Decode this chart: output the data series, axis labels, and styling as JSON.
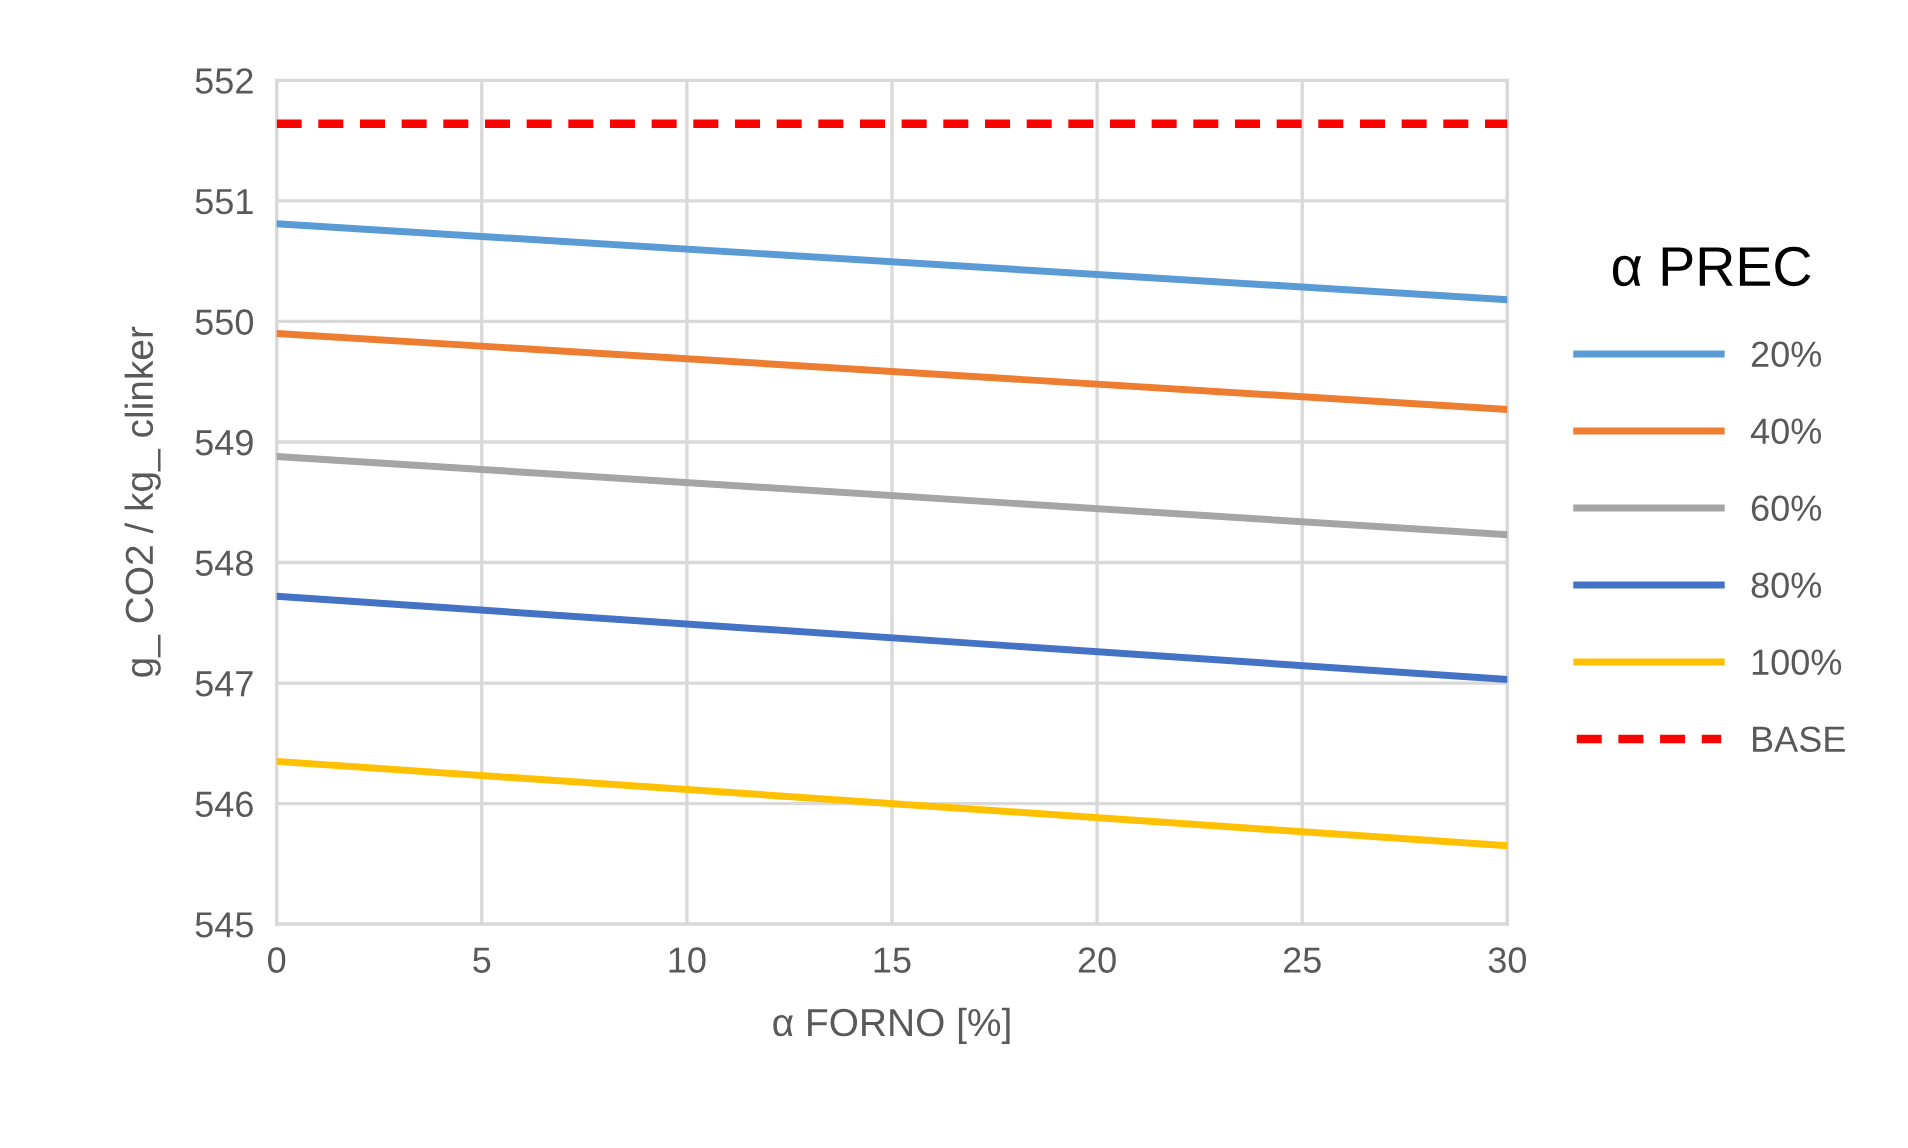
{
  "chart_data": {
    "type": "line",
    "xlabel": "α FORNO [%]",
    "ylabel": "g_ CO2 / kg_ clinker",
    "legend_title": "α PREC",
    "x": [
      0,
      30
    ],
    "series": [
      {
        "name": "20%",
        "color": "#5b9bd5",
        "values": [
          550.81,
          550.18
        ]
      },
      {
        "name": "40%",
        "color": "#ed7d31",
        "values": [
          549.9,
          549.27
        ]
      },
      {
        "name": "60%",
        "color": "#a5a5a5",
        "values": [
          548.88,
          548.23
        ]
      },
      {
        "name": "80%",
        "color": "#4472c4",
        "values": [
          547.72,
          547.03
        ]
      },
      {
        "name": "100%",
        "color": "#ffc000",
        "values": [
          546.35,
          545.65
        ]
      },
      {
        "name": "BASE",
        "color": "#ff0000",
        "values": [
          551.64,
          551.64
        ],
        "line_style": "dashed"
      }
    ],
    "xlim": [
      0,
      30
    ],
    "xticks": [
      0,
      5,
      10,
      15,
      20,
      25,
      30
    ],
    "ylim": [
      545,
      552
    ],
    "yticks": [
      545,
      546,
      547,
      548,
      549,
      550,
      551,
      552
    ],
    "grid": true,
    "legend": "right",
    "marker": "none",
    "line_style": "solid"
  }
}
